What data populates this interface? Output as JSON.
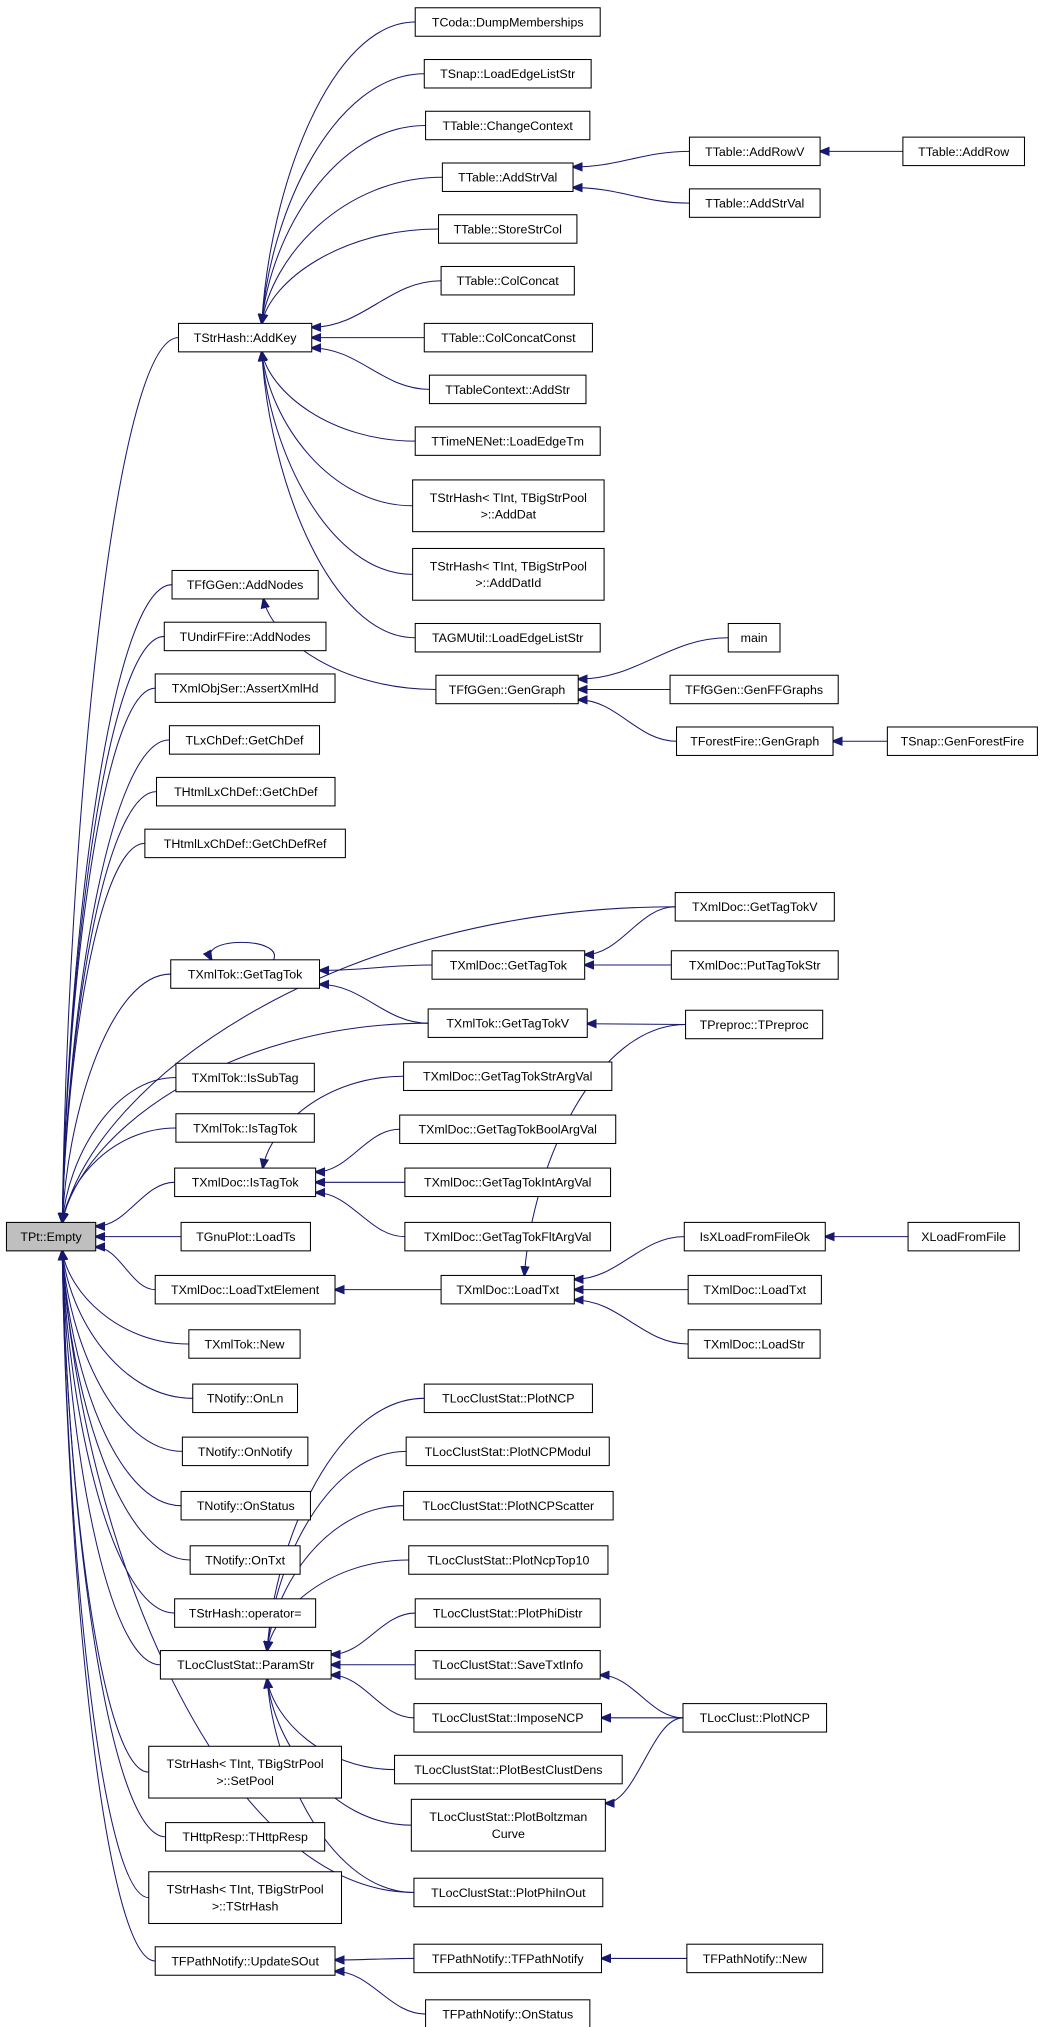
{
  "graph": {
    "colors": {
      "edge": "#191970",
      "root_fill": "#bfbfbf",
      "node_fill": "#ffffff",
      "border": "#000000"
    },
    "root": "empty",
    "nodes": [
      {
        "id": "empty",
        "lines": [
          "TPt::Empty"
        ]
      },
      {
        "id": "addkey",
        "lines": [
          "TStrHash::AddKey"
        ]
      },
      {
        "id": "coda",
        "lines": [
          "TCoda::DumpMemberships"
        ]
      },
      {
        "id": "snapload",
        "lines": [
          "TSnap::LoadEdgeListStr"
        ]
      },
      {
        "id": "chctx",
        "lines": [
          "TTable::ChangeContext"
        ]
      },
      {
        "id": "addstrval",
        "lines": [
          "TTable::AddStrVal"
        ]
      },
      {
        "id": "storestr",
        "lines": [
          "TTable::StoreStrCol"
        ]
      },
      {
        "id": "colconcat",
        "lines": [
          "TTable::ColConcat"
        ]
      },
      {
        "id": "colconcatc",
        "lines": [
          "TTable::ColConcatConst"
        ]
      },
      {
        "id": "tblctx",
        "lines": [
          "TTableContext::AddStr"
        ]
      },
      {
        "id": "timenet",
        "lines": [
          "TTimeNENet::LoadEdgeTm"
        ]
      },
      {
        "id": "adddat",
        "lines": [
          "TStrHash< TInt, TBigStrPool",
          ">::AddDat"
        ]
      },
      {
        "id": "adddatid",
        "lines": [
          "TStrHash< TInt, TBigStrPool",
          ">::AddDatId"
        ]
      },
      {
        "id": "agm",
        "lines": [
          "TAGMUtil::LoadEdgeListStr"
        ]
      },
      {
        "id": "addrowv",
        "lines": [
          "TTable::AddRowV"
        ]
      },
      {
        "id": "addstrval2",
        "lines": [
          "TTable::AddStrVal"
        ]
      },
      {
        "id": "addrow",
        "lines": [
          "TTable::AddRow"
        ]
      },
      {
        "id": "addnodes",
        "lines": [
          "TFfGGen::AddNodes"
        ]
      },
      {
        "id": "undir",
        "lines": [
          "TUndirFFire::AddNodes"
        ]
      },
      {
        "id": "assert",
        "lines": [
          "TXmlObjSer::AssertXmlHd"
        ]
      },
      {
        "id": "lxch",
        "lines": [
          "TLxChDef::GetChDef"
        ]
      },
      {
        "id": "htmlch",
        "lines": [
          "THtmlLxChDef::GetChDef"
        ]
      },
      {
        "id": "htmlchref",
        "lines": [
          "THtmlLxChDef::GetChDefRef"
        ]
      },
      {
        "id": "gengraph",
        "lines": [
          "TFfGGen::GenGraph"
        ]
      },
      {
        "id": "main",
        "lines": [
          "main"
        ]
      },
      {
        "id": "genff",
        "lines": [
          "TFfGGen::GenFFGraphs"
        ]
      },
      {
        "id": "ffgen",
        "lines": [
          "TForestFire::GenGraph"
        ]
      },
      {
        "id": "genforest",
        "lines": [
          "TSnap::GenForestFire"
        ]
      },
      {
        "id": "xdgettagtokv",
        "lines": [
          "TXmlDoc::GetTagTokV"
        ]
      },
      {
        "id": "xtgettagtok",
        "lines": [
          "TXmlTok::GetTagTok"
        ]
      },
      {
        "id": "xdgettagtok",
        "lines": [
          "TXmlDoc::GetTagTok"
        ]
      },
      {
        "id": "puttag",
        "lines": [
          "TXmlDoc::PutTagTokStr"
        ]
      },
      {
        "id": "xtgettagtokv",
        "lines": [
          "TXmlTok::GetTagTokV"
        ]
      },
      {
        "id": "preproc",
        "lines": [
          "TPreproc::TPreproc"
        ]
      },
      {
        "id": "issubtag",
        "lines": [
          "TXmlTok::IsSubTag"
        ]
      },
      {
        "id": "istagtok",
        "lines": [
          "TXmlTok::IsTagTok"
        ]
      },
      {
        "id": "xdistagtok",
        "lines": [
          "TXmlDoc::IsTagTok"
        ]
      },
      {
        "id": "strarg",
        "lines": [
          "TXmlDoc::GetTagTokStrArgVal"
        ]
      },
      {
        "id": "boolarg",
        "lines": [
          "TXmlDoc::GetTagTokBoolArgVal"
        ]
      },
      {
        "id": "intarg",
        "lines": [
          "TXmlDoc::GetTagTokIntArgVal"
        ]
      },
      {
        "id": "fltarg",
        "lines": [
          "TXmlDoc::GetTagTokFltArgVal"
        ]
      },
      {
        "id": "loadts",
        "lines": [
          "TGnuPlot::LoadTs"
        ]
      },
      {
        "id": "loadtxtel",
        "lines": [
          "TXmlDoc::LoadTxtElement"
        ]
      },
      {
        "id": "loadtxt",
        "lines": [
          "TXmlDoc::LoadTxt"
        ]
      },
      {
        "id": "isxload",
        "lines": [
          "IsXLoadFromFileOk"
        ]
      },
      {
        "id": "xload",
        "lines": [
          "XLoadFromFile"
        ]
      },
      {
        "id": "loadtxt2",
        "lines": [
          "TXmlDoc::LoadTxt"
        ]
      },
      {
        "id": "loadstr",
        "lines": [
          "TXmlDoc::LoadStr"
        ]
      },
      {
        "id": "xtnew",
        "lines": [
          "TXmlTok::New"
        ]
      },
      {
        "id": "onln",
        "lines": [
          "TNotify::OnLn"
        ]
      },
      {
        "id": "onnotify",
        "lines": [
          "TNotify::OnNotify"
        ]
      },
      {
        "id": "onstatus",
        "lines": [
          "TNotify::OnStatus"
        ]
      },
      {
        "id": "ontxt",
        "lines": [
          "TNotify::OnTxt"
        ]
      },
      {
        "id": "opeq",
        "lines": [
          "TStrHash::operator="
        ]
      },
      {
        "id": "paramstr",
        "lines": [
          "TLocClustStat::ParamStr"
        ]
      },
      {
        "id": "setpool",
        "lines": [
          "TStrHash< TInt, TBigStrPool",
          ">::SetPool"
        ]
      },
      {
        "id": "httpresp",
        "lines": [
          "THttpResp::THttpResp"
        ]
      },
      {
        "id": "tstrhash",
        "lines": [
          "TStrHash< TInt, TBigStrPool",
          ">::TStrHash"
        ]
      },
      {
        "id": "updatesout",
        "lines": [
          "TFPathNotify::UpdateSOut"
        ]
      },
      {
        "id": "plotncp",
        "lines": [
          "TLocClustStat::PlotNCP"
        ]
      },
      {
        "id": "ncpmodul",
        "lines": [
          "TLocClustStat::PlotNCPModul"
        ]
      },
      {
        "id": "ncpscatter",
        "lines": [
          "TLocClustStat::PlotNCPScatter"
        ]
      },
      {
        "id": "ncptop10",
        "lines": [
          "TLocClustStat::PlotNcpTop10"
        ]
      },
      {
        "id": "phidistr",
        "lines": [
          "TLocClustStat::PlotPhiDistr"
        ]
      },
      {
        "id": "savetxt",
        "lines": [
          "TLocClustStat::SaveTxtInfo"
        ]
      },
      {
        "id": "impose",
        "lines": [
          "TLocClustStat::ImposeNCP"
        ]
      },
      {
        "id": "bestclust",
        "lines": [
          "TLocClustStat::PlotBestClustDens"
        ]
      },
      {
        "id": "boltz",
        "lines": [
          "TLocClustStat::PlotBoltzman",
          "Curve"
        ]
      },
      {
        "id": "phiinout",
        "lines": [
          "TLocClustStat::PlotPhiInOut"
        ]
      },
      {
        "id": "fpathnotify",
        "lines": [
          "TFPathNotify::TFPathNotify"
        ]
      },
      {
        "id": "onstatus2",
        "lines": [
          "TFPathNotify::OnStatus"
        ]
      },
      {
        "id": "lcplotncp",
        "lines": [
          "TLocClust::PlotNCP"
        ]
      },
      {
        "id": "fpnew",
        "lines": [
          "TFPathNotify::New"
        ]
      }
    ],
    "edges": [
      [
        "addkey",
        "empty"
      ],
      [
        "addnodes",
        "empty"
      ],
      [
        "undir",
        "empty"
      ],
      [
        "assert",
        "empty"
      ],
      [
        "lxch",
        "empty"
      ],
      [
        "htmlch",
        "empty"
      ],
      [
        "htmlchref",
        "empty"
      ],
      [
        "xdgettagtokv",
        "empty"
      ],
      [
        "xtgettagtok",
        "empty"
      ],
      [
        "xtgettagtokv",
        "empty"
      ],
      [
        "issubtag",
        "empty"
      ],
      [
        "istagtok",
        "empty"
      ],
      [
        "xdistagtok",
        "empty"
      ],
      [
        "loadts",
        "empty"
      ],
      [
        "loadtxtel",
        "empty"
      ],
      [
        "xtnew",
        "empty"
      ],
      [
        "onln",
        "empty"
      ],
      [
        "onnotify",
        "empty"
      ],
      [
        "onstatus",
        "empty"
      ],
      [
        "ontxt",
        "empty"
      ],
      [
        "opeq",
        "empty"
      ],
      [
        "paramstr",
        "empty"
      ],
      [
        "phiinout",
        "empty"
      ],
      [
        "setpool",
        "empty"
      ],
      [
        "httpresp",
        "empty"
      ],
      [
        "tstrhash",
        "empty"
      ],
      [
        "updatesout",
        "empty"
      ],
      [
        "coda",
        "addkey"
      ],
      [
        "snapload",
        "addkey"
      ],
      [
        "chctx",
        "addkey"
      ],
      [
        "addstrval",
        "addkey"
      ],
      [
        "storestr",
        "addkey"
      ],
      [
        "colconcat",
        "addkey"
      ],
      [
        "colconcatc",
        "addkey"
      ],
      [
        "tblctx",
        "addkey"
      ],
      [
        "timenet",
        "addkey"
      ],
      [
        "adddat",
        "addkey"
      ],
      [
        "adddatid",
        "addkey"
      ],
      [
        "agm",
        "addkey"
      ],
      [
        "addrowv",
        "addstrval"
      ],
      [
        "addstrval2",
        "addstrval"
      ],
      [
        "addrow",
        "addrowv"
      ],
      [
        "gengraph",
        "addnodes"
      ],
      [
        "main",
        "gengraph"
      ],
      [
        "genff",
        "gengraph"
      ],
      [
        "ffgen",
        "gengraph"
      ],
      [
        "genforest",
        "ffgen"
      ],
      [
        "xtgettagtok",
        "xtgettagtok"
      ],
      [
        "xdgettagtok",
        "xtgettagtok"
      ],
      [
        "xtgettagtokv",
        "xtgettagtok"
      ],
      [
        "xdgettagtokv",
        "xdgettagtok"
      ],
      [
        "puttag",
        "xdgettagtok"
      ],
      [
        "preproc",
        "xtgettagtokv"
      ],
      [
        "strarg",
        "xdistagtok"
      ],
      [
        "boolarg",
        "xdistagtok"
      ],
      [
        "intarg",
        "xdistagtok"
      ],
      [
        "fltarg",
        "xdistagtok"
      ],
      [
        "loadtxt",
        "loadtxtel"
      ],
      [
        "preproc",
        "loadtxt"
      ],
      [
        "isxload",
        "loadtxt"
      ],
      [
        "loadtxt2",
        "loadtxt"
      ],
      [
        "loadstr",
        "loadtxt"
      ],
      [
        "xload",
        "isxload"
      ],
      [
        "plotncp",
        "paramstr"
      ],
      [
        "ncpmodul",
        "paramstr"
      ],
      [
        "ncpscatter",
        "paramstr"
      ],
      [
        "ncptop10",
        "paramstr"
      ],
      [
        "phidistr",
        "paramstr"
      ],
      [
        "savetxt",
        "paramstr"
      ],
      [
        "impose",
        "paramstr"
      ],
      [
        "bestclust",
        "paramstr"
      ],
      [
        "boltz",
        "paramstr"
      ],
      [
        "phiinout",
        "paramstr"
      ],
      [
        "lcplotncp",
        "savetxt"
      ],
      [
        "lcplotncp",
        "impose"
      ],
      [
        "lcplotncp",
        "boltz"
      ],
      [
        "fpathnotify",
        "updatesout"
      ],
      [
        "onstatus2",
        "updatesout"
      ],
      [
        "fpnew",
        "fpathnotify"
      ]
    ]
  }
}
